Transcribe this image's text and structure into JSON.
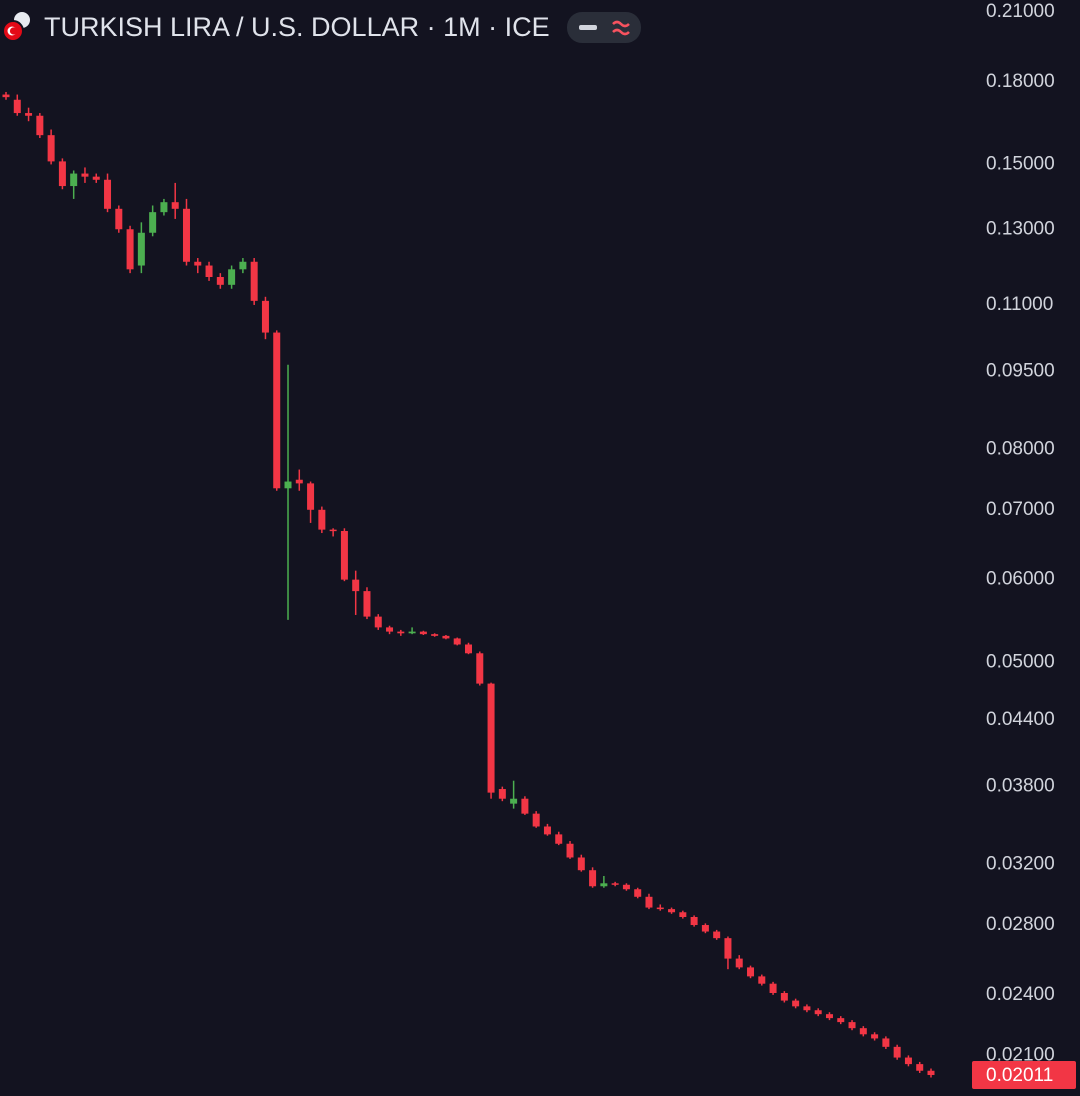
{
  "chart_data": {
    "type": "candlestick",
    "title": "TURKISH LIRA / U.S. DOLLAR · 1M · ICE",
    "log_scale": true,
    "up_color": "#4caf50",
    "down_color": "#f23645",
    "ylim": [
      0.0192,
      0.2156
    ],
    "yticks": [
      {
        "value": 0.21,
        "label": "0.21000"
      },
      {
        "value": 0.18,
        "label": "0.18000"
      },
      {
        "value": 0.15,
        "label": "0.15000"
      },
      {
        "value": 0.13,
        "label": "0.13000"
      },
      {
        "value": 0.11,
        "label": "0.11000"
      },
      {
        "value": 0.095,
        "label": "0.09500"
      },
      {
        "value": 0.08,
        "label": "0.08000"
      },
      {
        "value": 0.07,
        "label": "0.07000"
      },
      {
        "value": 0.06,
        "label": "0.06000"
      },
      {
        "value": 0.05,
        "label": "0.05000"
      },
      {
        "value": 0.044,
        "label": "0.04400"
      },
      {
        "value": 0.038,
        "label": "0.03800"
      },
      {
        "value": 0.032,
        "label": "0.03200"
      },
      {
        "value": 0.028,
        "label": "0.02800"
      },
      {
        "value": 0.024,
        "label": "0.02400"
      },
      {
        "value": 0.021,
        "label": "0.02100"
      }
    ],
    "last_price": 0.02011,
    "open": [
      0.175,
      0.173,
      0.168,
      0.167,
      0.16,
      0.151,
      0.143,
      0.147,
      0.146,
      0.145,
      0.136,
      0.13,
      0.12,
      0.129,
      0.135,
      0.138,
      0.136,
      0.121,
      0.12,
      0.117,
      0.115,
      0.119,
      0.121,
      0.111,
      0.1035,
      0.0734,
      0.0748,
      0.0742,
      0.07,
      0.067,
      0.0668,
      0.06,
      0.0585,
      0.0553,
      0.054,
      0.0535,
      0.0533,
      0.0535,
      0.0532,
      0.053,
      0.0527,
      0.052,
      0.051,
      0.0477,
      0.0378,
      0.0366,
      0.037,
      0.0358,
      0.0348,
      0.0342,
      0.0335,
      0.0325,
      0.0316,
      0.0305,
      0.0307,
      0.0306,
      0.0303,
      0.0298,
      0.0291,
      0.029,
      0.0288,
      0.0285,
      0.028,
      0.0276,
      0.0272,
      0.026,
      0.0255,
      0.025,
      0.0246,
      0.0241,
      0.0237,
      0.0234,
      0.0232,
      0.023,
      0.0228,
      0.0226,
      0.0223,
      0.022,
      0.0218,
      0.0214,
      0.0209,
      0.0206,
      0.0203
    ],
    "high": [
      0.176,
      0.175,
      0.17,
      0.168,
      0.162,
      0.152,
      0.148,
      0.149,
      0.147,
      0.147,
      0.137,
      0.131,
      0.132,
      0.137,
      0.139,
      0.144,
      0.139,
      0.122,
      0.121,
      0.118,
      0.12,
      0.122,
      0.122,
      0.112,
      0.104,
      0.0964,
      0.0765,
      0.0745,
      0.0705,
      0.0672,
      0.0672,
      0.0612,
      0.059,
      0.0556,
      0.0542,
      0.0537,
      0.054,
      0.0536,
      0.0533,
      0.0531,
      0.0528,
      0.0522,
      0.0512,
      0.0478,
      0.038,
      0.0385,
      0.0372,
      0.036,
      0.035,
      0.0344,
      0.0337,
      0.0327,
      0.0318,
      0.0312,
      0.0308,
      0.0307,
      0.0304,
      0.03,
      0.0293,
      0.0291,
      0.0289,
      0.0286,
      0.0281,
      0.0277,
      0.0273,
      0.0262,
      0.0256,
      0.0251,
      0.0247,
      0.0242,
      0.0238,
      0.0235,
      0.0233,
      0.0231,
      0.0229,
      0.0227,
      0.0224,
      0.0221,
      0.0219,
      0.0215,
      0.021,
      0.0207,
      0.0204
    ],
    "low": [
      0.173,
      0.167,
      0.165,
      0.159,
      0.15,
      0.142,
      0.139,
      0.144,
      0.144,
      0.135,
      0.129,
      0.118,
      0.118,
      0.128,
      0.134,
      0.133,
      0.12,
      0.118,
      0.116,
      0.114,
      0.114,
      0.118,
      0.11,
      0.102,
      0.073,
      0.0549,
      0.073,
      0.068,
      0.0665,
      0.066,
      0.0598,
      0.0555,
      0.055,
      0.0537,
      0.0532,
      0.053,
      0.0532,
      0.0531,
      0.0529,
      0.0526,
      0.0519,
      0.0509,
      0.0475,
      0.037,
      0.0368,
      0.0362,
      0.0357,
      0.0347,
      0.0341,
      0.0334,
      0.0324,
      0.0315,
      0.0304,
      0.0304,
      0.0305,
      0.0302,
      0.0297,
      0.029,
      0.0289,
      0.0287,
      0.0284,
      0.0279,
      0.0275,
      0.0271,
      0.0254,
      0.0254,
      0.0249,
      0.0245,
      0.024,
      0.0236,
      0.0233,
      0.0231,
      0.0229,
      0.0227,
      0.0225,
      0.0222,
      0.0219,
      0.0217,
      0.0213,
      0.0208,
      0.0205,
      0.0202,
      0.02
    ],
    "close": [
      0.174,
      0.168,
      0.167,
      0.16,
      0.151,
      0.143,
      0.147,
      0.146,
      0.145,
      0.136,
      0.13,
      0.119,
      0.129,
      0.135,
      0.138,
      0.136,
      0.121,
      0.12,
      0.117,
      0.115,
      0.119,
      0.121,
      0.111,
      0.1035,
      0.0734,
      0.0745,
      0.0742,
      0.07,
      0.067,
      0.0668,
      0.06,
      0.0585,
      0.0553,
      0.054,
      0.0535,
      0.0533,
      0.0535,
      0.0532,
      0.053,
      0.0527,
      0.052,
      0.051,
      0.0477,
      0.0375,
      0.037,
      0.037,
      0.0358,
      0.0348,
      0.0342,
      0.0335,
      0.0325,
      0.0316,
      0.0305,
      0.0307,
      0.0306,
      0.0303,
      0.0298,
      0.0291,
      0.029,
      0.0288,
      0.0285,
      0.028,
      0.0276,
      0.0272,
      0.026,
      0.0255,
      0.025,
      0.0246,
      0.0241,
      0.0237,
      0.0234,
      0.0232,
      0.023,
      0.0228,
      0.0226,
      0.0223,
      0.022,
      0.0218,
      0.0214,
      0.0209,
      0.0206,
      0.0203,
      0.02011
    ]
  }
}
